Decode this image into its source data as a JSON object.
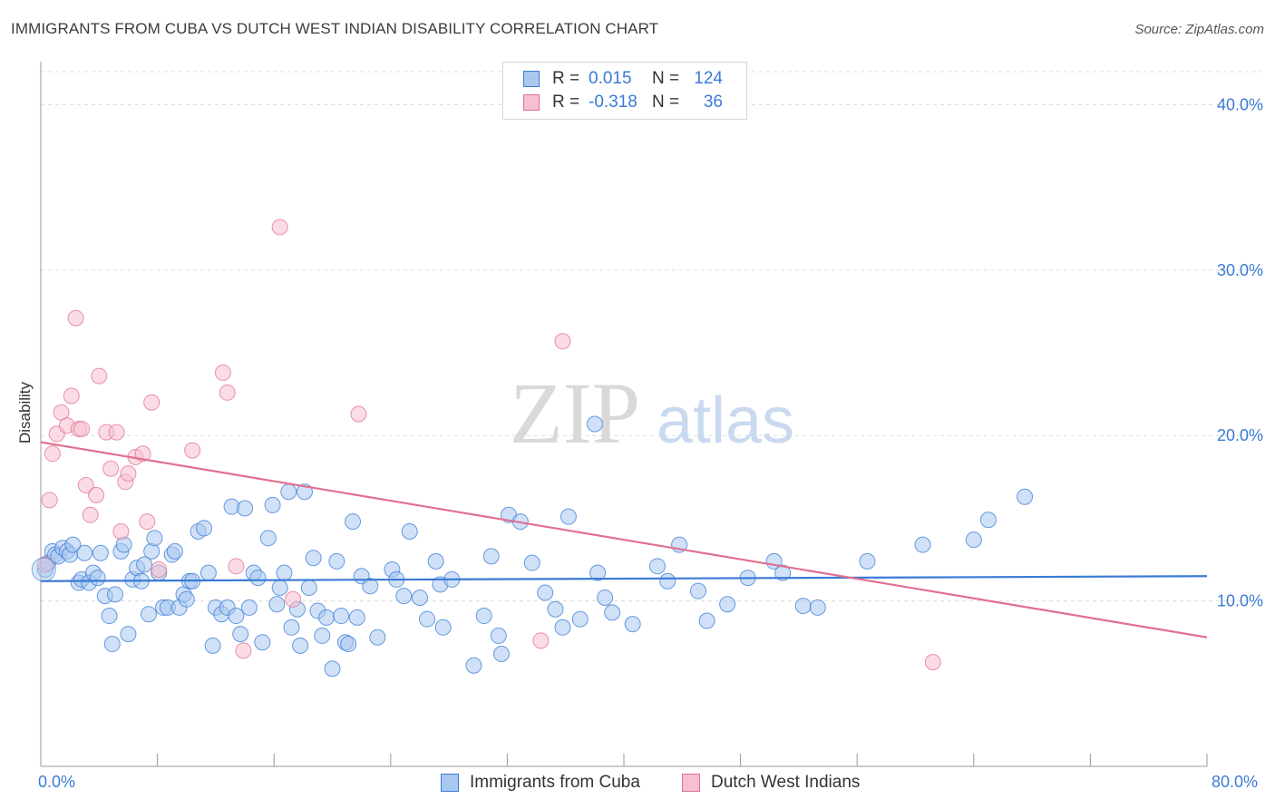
{
  "title": "IMMIGRANTS FROM CUBA VS DUTCH WEST INDIAN DISABILITY CORRELATION CHART",
  "source": "Source: ZipAtlas.com",
  "watermark": {
    "zip": "ZIP",
    "atlas": "atlas"
  },
  "legend": {
    "rows": [
      {
        "r_label": "R =",
        "r_value": "0.015",
        "n_label": "N =",
        "n_value": "124",
        "color": "#a9c8f0",
        "border": "#3a7bd5"
      },
      {
        "r_label": "R =",
        "r_value": "-0.318",
        "n_label": "N =",
        "n_value": "36",
        "color": "#f7bfd0",
        "border": "#e0708f"
      }
    ]
  },
  "bottom_legend": [
    {
      "label": "Immigrants from Cuba",
      "color": "#a9c8f0",
      "border": "#3a7bd5"
    },
    {
      "label": "Dutch West Indians",
      "color": "#f7bfd0",
      "border": "#e0708f"
    }
  ],
  "x_labels": {
    "min": "0.0%",
    "max": "80.0%"
  },
  "chart_data": {
    "type": "scatter",
    "title": "IMMIGRANTS FROM CUBA VS DUTCH WEST INDIAN DISABILITY CORRELATION CHART",
    "xlabel": "",
    "ylabel": "Disability",
    "xlim": [
      0,
      80
    ],
    "ylim": [
      0,
      42
    ],
    "y_ticks": [
      10,
      20,
      30,
      40
    ],
    "y_tick_labels": [
      "10.0%",
      "20.0%",
      "30.0%",
      "40.0%"
    ],
    "grid": "horizontal dashed",
    "series": [
      {
        "name": "Immigrants from Cuba",
        "color": "#3a7bd5",
        "fill": "#a9c8f0",
        "trend": {
          "x": [
            0,
            80
          ],
          "y": [
            11.2,
            11.5
          ]
        },
        "points": [
          [
            0.3,
            11.9
          ],
          [
            0.5,
            12.3
          ],
          [
            0.8,
            13.0
          ],
          [
            1.0,
            12.8
          ],
          [
            1.2,
            12.7
          ],
          [
            1.5,
            13.2
          ],
          [
            1.8,
            13.0
          ],
          [
            2.0,
            12.8
          ],
          [
            2.2,
            13.4
          ],
          [
            2.6,
            11.1
          ],
          [
            2.8,
            11.3
          ],
          [
            3.0,
            12.9
          ],
          [
            3.3,
            11.1
          ],
          [
            3.6,
            11.7
          ],
          [
            3.9,
            11.4
          ],
          [
            4.1,
            12.9
          ],
          [
            4.4,
            10.3
          ],
          [
            4.7,
            9.1
          ],
          [
            4.9,
            7.4
          ],
          [
            5.1,
            10.4
          ],
          [
            5.5,
            13.0
          ],
          [
            5.7,
            13.4
          ],
          [
            6.0,
            8.0
          ],
          [
            6.3,
            11.3
          ],
          [
            6.6,
            12.0
          ],
          [
            6.9,
            11.2
          ],
          [
            7.1,
            12.2
          ],
          [
            7.4,
            9.2
          ],
          [
            7.6,
            13.0
          ],
          [
            7.8,
            13.8
          ],
          [
            8.1,
            11.7
          ],
          [
            8.4,
            9.6
          ],
          [
            8.7,
            9.6
          ],
          [
            9.0,
            12.8
          ],
          [
            9.2,
            13.0
          ],
          [
            9.5,
            9.6
          ],
          [
            9.8,
            10.4
          ],
          [
            10.0,
            10.1
          ],
          [
            10.2,
            11.2
          ],
          [
            10.4,
            11.2
          ],
          [
            10.8,
            14.2
          ],
          [
            11.2,
            14.4
          ],
          [
            11.5,
            11.7
          ],
          [
            11.8,
            7.3
          ],
          [
            12.0,
            9.6
          ],
          [
            12.4,
            9.2
          ],
          [
            12.8,
            9.6
          ],
          [
            13.1,
            15.7
          ],
          [
            13.4,
            9.1
          ],
          [
            13.7,
            8.0
          ],
          [
            14.0,
            15.6
          ],
          [
            14.3,
            9.6
          ],
          [
            14.6,
            11.7
          ],
          [
            14.9,
            11.4
          ],
          [
            15.2,
            7.5
          ],
          [
            15.6,
            13.8
          ],
          [
            15.9,
            15.8
          ],
          [
            16.2,
            9.8
          ],
          [
            16.4,
            10.8
          ],
          [
            16.7,
            11.7
          ],
          [
            17.0,
            16.6
          ],
          [
            17.2,
            8.4
          ],
          [
            17.6,
            9.5
          ],
          [
            17.8,
            7.3
          ],
          [
            18.1,
            16.6
          ],
          [
            18.4,
            10.8
          ],
          [
            18.7,
            12.6
          ],
          [
            19.0,
            9.4
          ],
          [
            19.3,
            7.9
          ],
          [
            19.6,
            9.0
          ],
          [
            20.0,
            5.9
          ],
          [
            20.3,
            12.4
          ],
          [
            20.6,
            9.1
          ],
          [
            20.9,
            7.5
          ],
          [
            21.1,
            7.4
          ],
          [
            21.4,
            14.8
          ],
          [
            21.7,
            9.0
          ],
          [
            22.0,
            11.5
          ],
          [
            22.6,
            10.9
          ],
          [
            23.1,
            7.8
          ],
          [
            24.1,
            11.9
          ],
          [
            24.4,
            11.3
          ],
          [
            24.9,
            10.3
          ],
          [
            25.3,
            14.2
          ],
          [
            26.0,
            10.2
          ],
          [
            26.5,
            8.9
          ],
          [
            27.1,
            12.4
          ],
          [
            27.4,
            11.0
          ],
          [
            27.6,
            8.4
          ],
          [
            28.2,
            11.3
          ],
          [
            29.7,
            6.1
          ],
          [
            30.4,
            9.1
          ],
          [
            30.9,
            12.7
          ],
          [
            31.4,
            7.9
          ],
          [
            31.6,
            6.8
          ],
          [
            32.1,
            15.2
          ],
          [
            32.9,
            14.8
          ],
          [
            33.7,
            12.3
          ],
          [
            34.6,
            10.5
          ],
          [
            35.3,
            9.5
          ],
          [
            35.8,
            8.4
          ],
          [
            36.2,
            15.1
          ],
          [
            37.0,
            8.9
          ],
          [
            38.2,
            11.7
          ],
          [
            38.7,
            10.2
          ],
          [
            39.2,
            9.3
          ],
          [
            40.6,
            8.6
          ],
          [
            42.3,
            12.1
          ],
          [
            43.0,
            11.2
          ],
          [
            43.8,
            13.4
          ],
          [
            45.1,
            10.6
          ],
          [
            45.7,
            8.8
          ],
          [
            47.1,
            9.8
          ],
          [
            48.5,
            11.4
          ],
          [
            50.3,
            12.4
          ],
          [
            50.9,
            11.7
          ],
          [
            52.3,
            9.7
          ],
          [
            53.3,
            9.6
          ],
          [
            56.7,
            12.4
          ],
          [
            60.5,
            13.4
          ],
          [
            64.0,
            13.7
          ],
          [
            65.0,
            14.9
          ],
          [
            67.5,
            16.3
          ],
          [
            38.0,
            20.7
          ]
        ]
      },
      {
        "name": "Dutch West Indians",
        "color": "#e0708f",
        "fill": "#f7bfd0",
        "trend": {
          "x": [
            0,
            80
          ],
          "y": [
            19.6,
            7.8
          ]
        },
        "points": [
          [
            0.3,
            12.2
          ],
          [
            0.6,
            16.1
          ],
          [
            0.8,
            18.9
          ],
          [
            1.1,
            20.1
          ],
          [
            1.4,
            21.4
          ],
          [
            1.8,
            20.6
          ],
          [
            2.1,
            22.4
          ],
          [
            2.4,
            27.1
          ],
          [
            2.6,
            20.4
          ],
          [
            2.8,
            20.4
          ],
          [
            3.1,
            17.0
          ],
          [
            3.4,
            15.2
          ],
          [
            3.8,
            16.4
          ],
          [
            4.0,
            23.6
          ],
          [
            4.5,
            20.2
          ],
          [
            4.8,
            18.0
          ],
          [
            5.2,
            20.2
          ],
          [
            5.5,
            14.2
          ],
          [
            5.8,
            17.2
          ],
          [
            6.0,
            17.7
          ],
          [
            6.5,
            18.7
          ],
          [
            7.0,
            18.9
          ],
          [
            7.3,
            14.8
          ],
          [
            7.6,
            22.0
          ],
          [
            8.1,
            11.9
          ],
          [
            10.4,
            19.1
          ],
          [
            12.5,
            23.8
          ],
          [
            12.8,
            22.6
          ],
          [
            13.4,
            12.1
          ],
          [
            13.9,
            7.0
          ],
          [
            16.4,
            32.6
          ],
          [
            17.3,
            10.1
          ],
          [
            21.8,
            21.3
          ],
          [
            34.3,
            7.6
          ],
          [
            35.8,
            25.7
          ],
          [
            61.2,
            6.3
          ]
        ]
      }
    ]
  }
}
